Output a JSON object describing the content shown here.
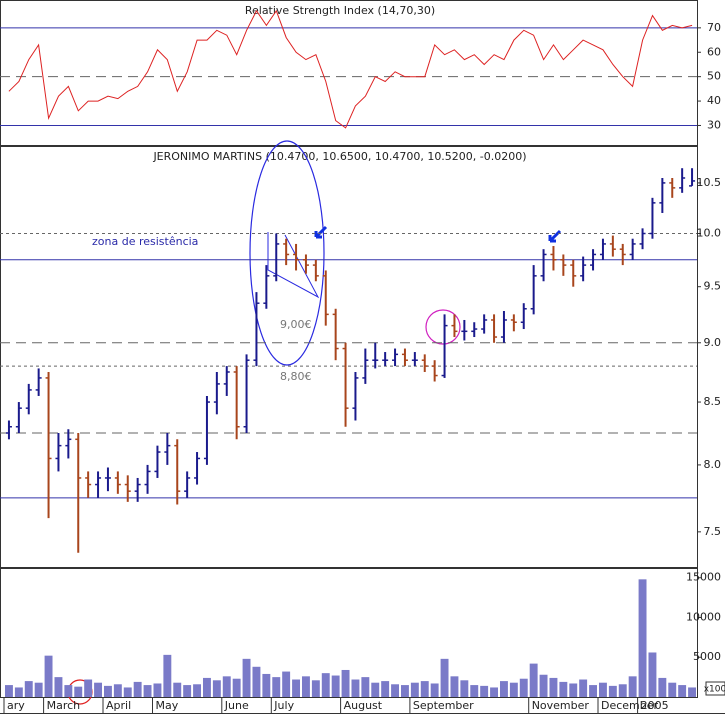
{
  "chart_data": [
    {
      "type": "line",
      "title": "Relative Strength Index (14,70,30)",
      "color": "#dd2222",
      "values": [
        44,
        48,
        57,
        63,
        33,
        42,
        46,
        36,
        40,
        40,
        42,
        41,
        44,
        46,
        52,
        61,
        57,
        44,
        52,
        65,
        65,
        69,
        67,
        59,
        69,
        77,
        71,
        77,
        66,
        60,
        57,
        59,
        48,
        32,
        29,
        38,
        42,
        50,
        48,
        52,
        50,
        50,
        50,
        63,
        59,
        61,
        57,
        59,
        55,
        59,
        57,
        65,
        69,
        67,
        57,
        63,
        57,
        61,
        65,
        63,
        61,
        55,
        50,
        46,
        65,
        75,
        69,
        71,
        70,
        71
      ],
      "ylim": [
        22,
        81
      ],
      "yticks": [
        30,
        40,
        50,
        60,
        70
      ],
      "hlines": [
        {
          "value": 70,
          "style": "solid"
        },
        {
          "value": 50,
          "style": "dashed"
        },
        {
          "value": 30,
          "style": "solid"
        }
      ]
    },
    {
      "type": "ohlc",
      "title": "JERONIMO MARTINS (10.4700, 10.6500, 10.4700, 10.5200, -0.0200)",
      "log": true,
      "up_color": "#1a1a8c",
      "down_color": "#a8451c",
      "open": [
        8.25,
        8.3,
        8.45,
        8.6,
        8.7,
        8.05,
        8.15,
        8.2,
        7.9,
        7.85,
        7.9,
        7.9,
        7.85,
        7.8,
        7.85,
        7.95,
        8.1,
        8.15,
        7.8,
        7.9,
        8.05,
        8.5,
        8.65,
        8.75,
        8.3,
        8.85,
        9.35,
        9.6,
        9.9,
        9.8,
        9.75,
        9.7,
        9.6,
        9.25,
        8.95,
        8.45,
        8.7,
        8.85,
        8.85,
        8.85,
        8.9,
        8.85,
        8.85,
        8.8,
        8.72,
        9.15,
        9.1,
        9.1,
        9.12,
        9.2,
        9.05,
        9.2,
        9.18,
        9.3,
        9.6,
        9.8,
        9.75,
        9.7,
        9.6,
        9.7,
        9.8,
        9.9,
        9.85,
        9.8,
        9.9,
        10.0,
        10.3,
        10.5,
        10.45,
        10.47
      ],
      "high": [
        8.35,
        8.5,
        8.65,
        8.78,
        8.75,
        8.25,
        8.28,
        8.25,
        7.95,
        7.95,
        7.98,
        7.95,
        7.92,
        7.9,
        8.0,
        8.15,
        8.25,
        8.2,
        7.95,
        8.1,
        8.55,
        8.75,
        8.8,
        8.8,
        8.9,
        9.45,
        9.7,
        10.0,
        9.95,
        9.9,
        9.8,
        9.75,
        9.65,
        9.3,
        9.0,
        8.75,
        8.95,
        9.0,
        8.92,
        8.95,
        8.95,
        8.92,
        8.9,
        8.85,
        9.25,
        9.25,
        9.2,
        9.18,
        9.25,
        9.25,
        9.28,
        9.25,
        9.35,
        9.7,
        9.85,
        9.88,
        9.8,
        9.75,
        9.78,
        9.85,
        9.95,
        9.98,
        9.9,
        9.95,
        10.05,
        10.35,
        10.55,
        10.55,
        10.65,
        10.65
      ],
      "low": [
        8.2,
        8.25,
        8.4,
        8.55,
        7.6,
        7.95,
        8.05,
        7.35,
        7.75,
        7.75,
        7.8,
        7.78,
        7.72,
        7.72,
        7.78,
        7.9,
        8.0,
        7.7,
        7.75,
        7.85,
        8.0,
        8.4,
        8.55,
        8.2,
        8.25,
        8.8,
        9.3,
        9.55,
        9.7,
        9.65,
        9.62,
        9.55,
        9.15,
        8.85,
        8.3,
        8.35,
        8.65,
        8.78,
        8.8,
        8.8,
        8.8,
        8.8,
        8.75,
        8.67,
        8.7,
        9.05,
        9.02,
        9.05,
        9.08,
        9.0,
        9.0,
        9.1,
        9.12,
        9.25,
        9.55,
        9.65,
        9.6,
        9.5,
        9.55,
        9.65,
        9.75,
        9.78,
        9.7,
        9.75,
        9.85,
        9.95,
        10.2,
        10.35,
        10.4,
        10.47
      ],
      "close": [
        8.3,
        8.45,
        8.6,
        8.7,
        8.05,
        8.15,
        8.2,
        7.9,
        7.85,
        7.9,
        7.9,
        7.85,
        7.8,
        7.85,
        7.95,
        8.1,
        8.15,
        7.8,
        7.9,
        8.05,
        8.5,
        8.65,
        8.75,
        8.3,
        8.85,
        9.35,
        9.6,
        9.9,
        9.8,
        9.75,
        9.7,
        9.6,
        9.25,
        8.95,
        8.45,
        8.7,
        8.85,
        8.85,
        8.85,
        8.9,
        8.85,
        8.85,
        8.8,
        8.72,
        9.15,
        9.1,
        9.1,
        9.12,
        9.2,
        9.05,
        9.2,
        9.18,
        9.3,
        9.6,
        9.8,
        9.75,
        9.7,
        9.6,
        9.7,
        9.8,
        9.9,
        9.85,
        9.8,
        9.9,
        10.0,
        10.3,
        10.5,
        10.45,
        10.55,
        10.52
      ],
      "ylim": [
        7.25,
        10.87
      ],
      "yticks": [
        7.5,
        {
          "value": 8,
          "label": "8.0"
        },
        8.5,
        {
          "value": 9,
          "label": "9.0"
        },
        9.5,
        {
          "value": 10,
          "label": "10.0"
        },
        10.5
      ],
      "hlines": [
        {
          "value": 10.0,
          "style": "dotted"
        },
        {
          "value": 9.75,
          "style": "solid"
        },
        {
          "value": 9.0,
          "style": "dashed"
        },
        {
          "value": 8.8,
          "style": "dotted"
        },
        {
          "value": 8.25,
          "style": "dashed"
        },
        {
          "value": 7.75,
          "style": "solid"
        }
      ],
      "annotations": [
        "zona de resistência",
        "9,00€",
        "8,80€"
      ]
    },
    {
      "type": "bar",
      "color": "#7a7ac8",
      "unit": "x100",
      "categories": [
        "ary",
        null,
        null,
        null,
        "March",
        null,
        null,
        null,
        null,
        null,
        "April",
        null,
        null,
        null,
        null,
        "May",
        null,
        null,
        null,
        null,
        null,
        null,
        "June",
        null,
        null,
        null,
        null,
        "July",
        null,
        null,
        null,
        null,
        null,
        null,
        "August",
        null,
        null,
        null,
        null,
        null,
        null,
        "September",
        null,
        null,
        null,
        null,
        null,
        null,
        null,
        null,
        null,
        null,
        null,
        "November",
        null,
        null,
        null,
        null,
        null,
        null,
        "December",
        null,
        null,
        null,
        "2005",
        null,
        null,
        null,
        null,
        null
      ],
      "values": [
        1500,
        1200,
        2000,
        1800,
        5200,
        2500,
        1500,
        1300,
        2200,
        1800,
        1400,
        1600,
        1200,
        1900,
        1500,
        1700,
        5300,
        1800,
        1500,
        1600,
        2400,
        2100,
        2600,
        2300,
        4800,
        3800,
        2900,
        2500,
        3200,
        2200,
        2600,
        2100,
        3000,
        2700,
        3400,
        2200,
        2500,
        1800,
        2000,
        1600,
        1500,
        1800,
        2000,
        1700,
        4800,
        2600,
        2100,
        1500,
        1400,
        1200,
        2000,
        1800,
        2300,
        4200,
        2800,
        2400,
        1900,
        1700,
        2200,
        1500,
        1800,
        1400,
        1600,
        2600,
        14800,
        5600,
        2400,
        1800,
        1500,
        1200
      ],
      "ylim": [
        0,
        16100
      ],
      "yticks": [
        5000,
        10000,
        15000
      ]
    }
  ]
}
